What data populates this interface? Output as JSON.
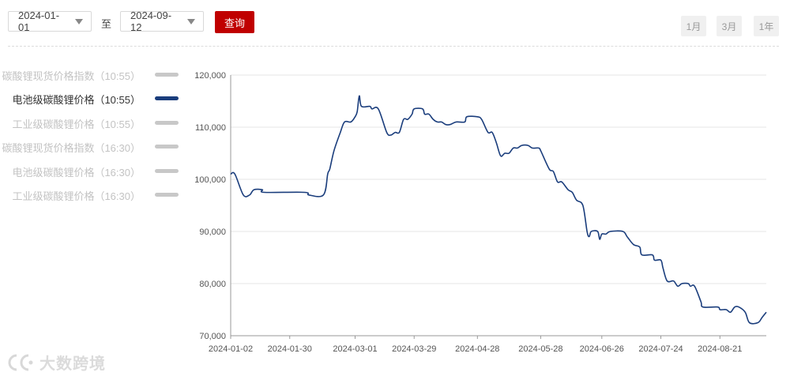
{
  "controls": {
    "start_date": "2024-01-01",
    "end_date": "2024-09-12",
    "to_label": "至",
    "query_label": "查询",
    "range_buttons": [
      "1月",
      "3月",
      "1年"
    ]
  },
  "legend": [
    {
      "label": "碳酸锂现货价格指数（10:55）",
      "active": false
    },
    {
      "label": "电池级碳酸锂价格（10:55）",
      "active": true
    },
    {
      "label": "工业级碳酸锂价格（10:55）",
      "active": false
    },
    {
      "label": "碳酸锂现货价格指数（16:30）",
      "active": false
    },
    {
      "label": "电池级碳酸锂价格（16:30）",
      "active": false
    },
    {
      "label": "工业级碳酸锂价格（16:30）",
      "active": false
    }
  ],
  "colors": {
    "active_series": "#1a3d7c",
    "inactive": "#c8c8c8",
    "accent": "#c00000"
  },
  "icons": {
    "dropdown": "chevron-down-icon",
    "watermark": "logo-icon"
  },
  "watermark": "大数跨境",
  "chart_data": {
    "type": "line",
    "title": "",
    "xlabel": "",
    "ylabel": "",
    "ylim": [
      70000,
      120000
    ],
    "xlim": [
      "2024-01-02",
      "2024-09-12"
    ],
    "yticks": [
      70000,
      80000,
      90000,
      100000,
      110000,
      120000
    ],
    "ytick_labels": [
      "70,000",
      "80,000",
      "90,000",
      "100,000",
      "110,000",
      "120,000"
    ],
    "xtick_labels": [
      "2024-01-02",
      "2024-01-30",
      "2024-03-01",
      "2024-03-29",
      "2024-04-28",
      "2024-05-28",
      "2024-06-26",
      "2024-07-24",
      "2024-08-21"
    ],
    "grid": true,
    "legend_position": "left",
    "series": [
      {
        "name": "电池级碳酸锂价格（10:55）",
        "points": [
          [
            "2024-01-02",
            101000
          ],
          [
            "2024-01-04",
            101000
          ],
          [
            "2024-01-08",
            97000
          ],
          [
            "2024-01-11",
            97000
          ],
          [
            "2024-01-13",
            98000
          ],
          [
            "2024-01-17",
            98000
          ],
          [
            "2024-01-18",
            97500
          ],
          [
            "2024-02-06",
            97500
          ],
          [
            "2024-02-08",
            97000
          ],
          [
            "2024-02-15",
            97000
          ],
          [
            "2024-02-17",
            101000
          ],
          [
            "2024-02-18",
            102000
          ],
          [
            "2024-02-20",
            105500
          ],
          [
            "2024-02-23",
            109000
          ],
          [
            "2024-02-25",
            111000
          ],
          [
            "2024-02-28",
            111000
          ],
          [
            "2024-03-01",
            112000
          ],
          [
            "2024-03-02",
            113000
          ],
          [
            "2024-03-03",
            116000
          ],
          [
            "2024-03-04",
            114000
          ],
          [
            "2024-03-08",
            114000
          ],
          [
            "2024-03-09",
            113500
          ],
          [
            "2024-03-12",
            113500
          ],
          [
            "2024-03-16",
            109000
          ],
          [
            "2024-03-18",
            108500
          ],
          [
            "2024-03-20",
            109000
          ],
          [
            "2024-03-22",
            109000
          ],
          [
            "2024-03-24",
            111500
          ],
          [
            "2024-03-26",
            111500
          ],
          [
            "2024-03-28",
            112500
          ],
          [
            "2024-03-29",
            113500
          ],
          [
            "2024-04-02",
            113500
          ],
          [
            "2024-04-03",
            112500
          ],
          [
            "2024-04-05",
            112500
          ],
          [
            "2024-04-07",
            111500
          ],
          [
            "2024-04-09",
            111000
          ],
          [
            "2024-04-11",
            111000
          ],
          [
            "2024-04-13",
            110500
          ],
          [
            "2024-04-15",
            110500
          ],
          [
            "2024-04-18",
            111000
          ],
          [
            "2024-04-22",
            111000
          ],
          [
            "2024-04-23",
            112000
          ],
          [
            "2024-04-28",
            112000
          ],
          [
            "2024-04-30",
            111500
          ],
          [
            "2024-05-03",
            109000
          ],
          [
            "2024-05-05",
            109000
          ],
          [
            "2024-05-07",
            107000
          ],
          [
            "2024-05-09",
            104500
          ],
          [
            "2024-05-11",
            105000
          ],
          [
            "2024-05-13",
            105000
          ],
          [
            "2024-05-15",
            106000
          ],
          [
            "2024-05-17",
            106000
          ],
          [
            "2024-05-19",
            106500
          ],
          [
            "2024-05-22",
            106500
          ],
          [
            "2024-05-24",
            106000
          ],
          [
            "2024-05-27",
            106000
          ],
          [
            "2024-05-28",
            105500
          ],
          [
            "2024-06-01",
            102000
          ],
          [
            "2024-06-03",
            101500
          ],
          [
            "2024-06-05",
            99500
          ],
          [
            "2024-06-07",
            99500
          ],
          [
            "2024-06-10",
            98000
          ],
          [
            "2024-06-12",
            97500
          ],
          [
            "2024-06-14",
            96000
          ],
          [
            "2024-06-17",
            95000
          ],
          [
            "2024-06-19",
            90000
          ],
          [
            "2024-06-20",
            89000
          ],
          [
            "2024-06-21",
            90000
          ],
          [
            "2024-06-24",
            90000
          ],
          [
            "2024-06-25",
            88500
          ],
          [
            "2024-06-26",
            89500
          ],
          [
            "2024-06-28",
            89500
          ],
          [
            "2024-06-30",
            90000
          ],
          [
            "2024-07-06",
            90000
          ],
          [
            "2024-07-08",
            89000
          ],
          [
            "2024-07-11",
            87500
          ],
          [
            "2024-07-14",
            87000
          ],
          [
            "2024-07-15",
            85500
          ],
          [
            "2024-07-20",
            85500
          ],
          [
            "2024-07-21",
            84500
          ],
          [
            "2024-07-24",
            84500
          ],
          [
            "2024-07-25",
            83000
          ],
          [
            "2024-07-27",
            80500
          ],
          [
            "2024-07-30",
            80500
          ],
          [
            "2024-08-01",
            79500
          ],
          [
            "2024-08-03",
            80000
          ],
          [
            "2024-08-06",
            80000
          ],
          [
            "2024-08-07",
            79500
          ],
          [
            "2024-08-09",
            79500
          ],
          [
            "2024-08-12",
            76500
          ],
          [
            "2024-08-13",
            75500
          ],
          [
            "2024-08-20",
            75500
          ],
          [
            "2024-08-21",
            75000
          ],
          [
            "2024-08-24",
            75000
          ],
          [
            "2024-08-26",
            74500
          ],
          [
            "2024-08-28",
            75500
          ],
          [
            "2024-08-30",
            75500
          ],
          [
            "2024-09-02",
            74500
          ],
          [
            "2024-09-04",
            72500
          ],
          [
            "2024-09-08",
            72500
          ],
          [
            "2024-09-10",
            73500
          ],
          [
            "2024-09-12",
            74500
          ]
        ]
      }
    ]
  }
}
